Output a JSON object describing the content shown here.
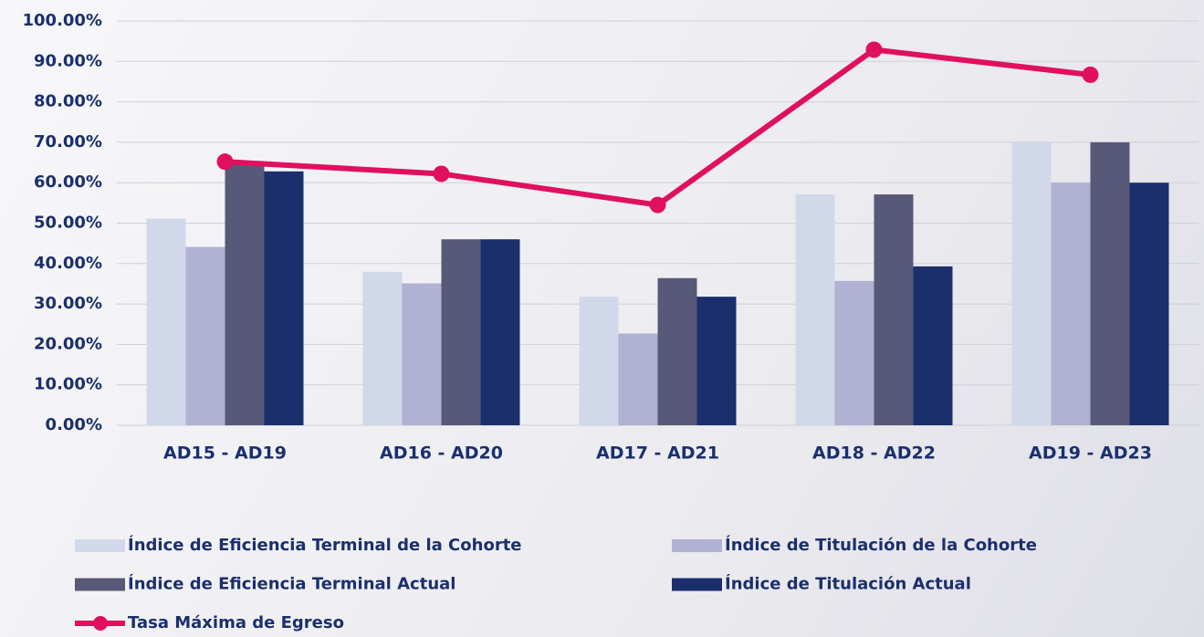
{
  "chart_data": {
    "type": "bar",
    "categories": [
      "AD15 - AD19",
      "AD16 - AD20",
      "AD17 - AD21",
      "AD18 - AD22",
      "AD19 - AD23"
    ],
    "series": [
      {
        "name": "Índice de Eficiencia Terminal de la Cohorte",
        "color": "#d0d8ea",
        "values": [
          51.1,
          37.9,
          31.8,
          57.1,
          70.0
        ]
      },
      {
        "name": "Índice de Titulación de la Cohorte",
        "color": "#b0b1d3",
        "values": [
          44.1,
          35.1,
          22.7,
          35.7,
          60.0
        ]
      },
      {
        "name": "Índice de Eficiencia Terminal Actual",
        "color": "#585878",
        "values": [
          65.0,
          46.0,
          36.4,
          57.1,
          70.0
        ]
      },
      {
        "name": "Índice de Titulación Actual",
        "color": "#1b2f6d",
        "values": [
          62.8,
          46.0,
          31.8,
          39.3,
          60.0
        ]
      },
      {
        "name": "Tasa Máxima de Egreso",
        "color": "#e0105f",
        "type": "line",
        "values": [
          65.2,
          62.2,
          54.5,
          92.9,
          86.7
        ]
      }
    ],
    "ylim": [
      0,
      100
    ],
    "yticks": [
      {
        "value": 0,
        "label": "0.00%"
      },
      {
        "value": 10,
        "label": "10.00%"
      },
      {
        "value": 20,
        "label": "20.00%"
      },
      {
        "value": 30,
        "label": "30.00%"
      },
      {
        "value": 40,
        "label": "40.00%"
      },
      {
        "value": 50,
        "label": "50.00%"
      },
      {
        "value": 60,
        "label": "60.00%"
      },
      {
        "value": 70,
        "label": "70.00%"
      },
      {
        "value": 80,
        "label": "80.00%"
      },
      {
        "value": 90,
        "label": "90.00%"
      },
      {
        "value": 100,
        "label": "100.00%"
      }
    ],
    "grid": true,
    "legend": "bottom"
  }
}
